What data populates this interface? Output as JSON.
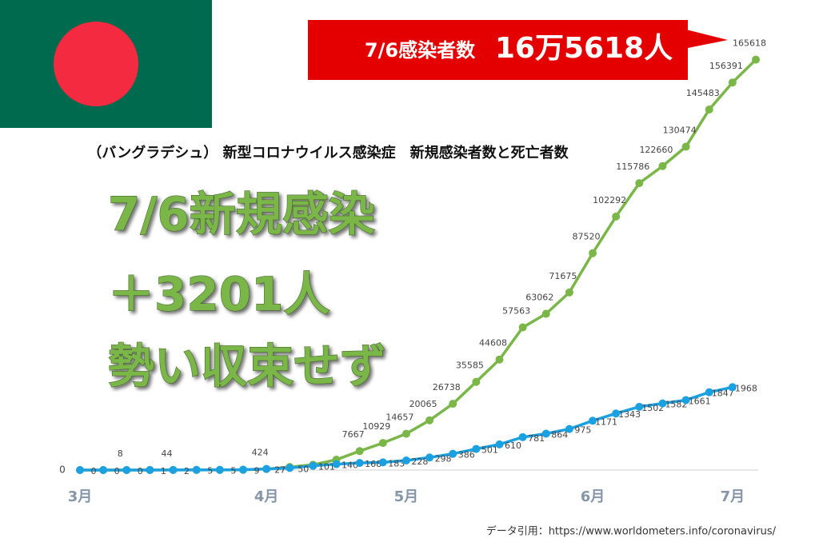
{
  "chart_data": {
    "type": "line",
    "title": "（バングラデシュ） 新型コロナウイルス感染症　新規感染者数と死亡者数",
    "categories": [
      "3月",
      null,
      null,
      null,
      null,
      null,
      null,
      null,
      "4月",
      null,
      null,
      null,
      null,
      null,
      "5月",
      null,
      null,
      null,
      null,
      null,
      null,
      null,
      "6月",
      null,
      null,
      null,
      null,
      null,
      "7月",
      null
    ],
    "ylim": [
      0,
      170000
    ],
    "yticks": [
      0
    ],
    "y2lim": [
      0,
      10000
    ],
    "series": [
      {
        "color": "#7ab648",
        "values": [
          0,
          0,
          8,
          33,
          44,
          48,
          54,
          61,
          424,
          1231,
          2144,
          4186,
          7667,
          10929,
          14657,
          20065,
          26738,
          35585,
          44608,
          57563,
          63062,
          71675,
          87520,
          102292,
          115786,
          122660,
          130474,
          145483,
          156391,
          165618
        ],
        "value_labels": [
          null,
          null,
          "8",
          null,
          "44",
          null,
          null,
          null,
          "424",
          null,
          null,
          null,
          "7667",
          "10929",
          "14657",
          "20065",
          "26738",
          "35585",
          "44608",
          "57563",
          "63062",
          "71675",
          "87520",
          "102292",
          "115786",
          "122660",
          "130474",
          "145483",
          "156391",
          "165618"
        ]
      },
      {
        "color": "#1ba1e2",
        "axis": "y2",
        "values": [
          0,
          0,
          0,
          1,
          2,
          5,
          5,
          9,
          27,
          50,
          101,
          140,
          168,
          183,
          228,
          298,
          386,
          501,
          610,
          781,
          864,
          975,
          1171,
          1343,
          1502,
          1582,
          1661,
          1847,
          1968,
          null
        ]
      }
    ]
  },
  "overlay": {
    "callout_left": "7/6感染者数",
    "callout_right": "16万5618人",
    "headline": [
      "7/6新規感染",
      "＋3201人",
      "勢い収束せず"
    ],
    "source": "データ引用：https://www.worldometers.info/coronavirus/"
  }
}
